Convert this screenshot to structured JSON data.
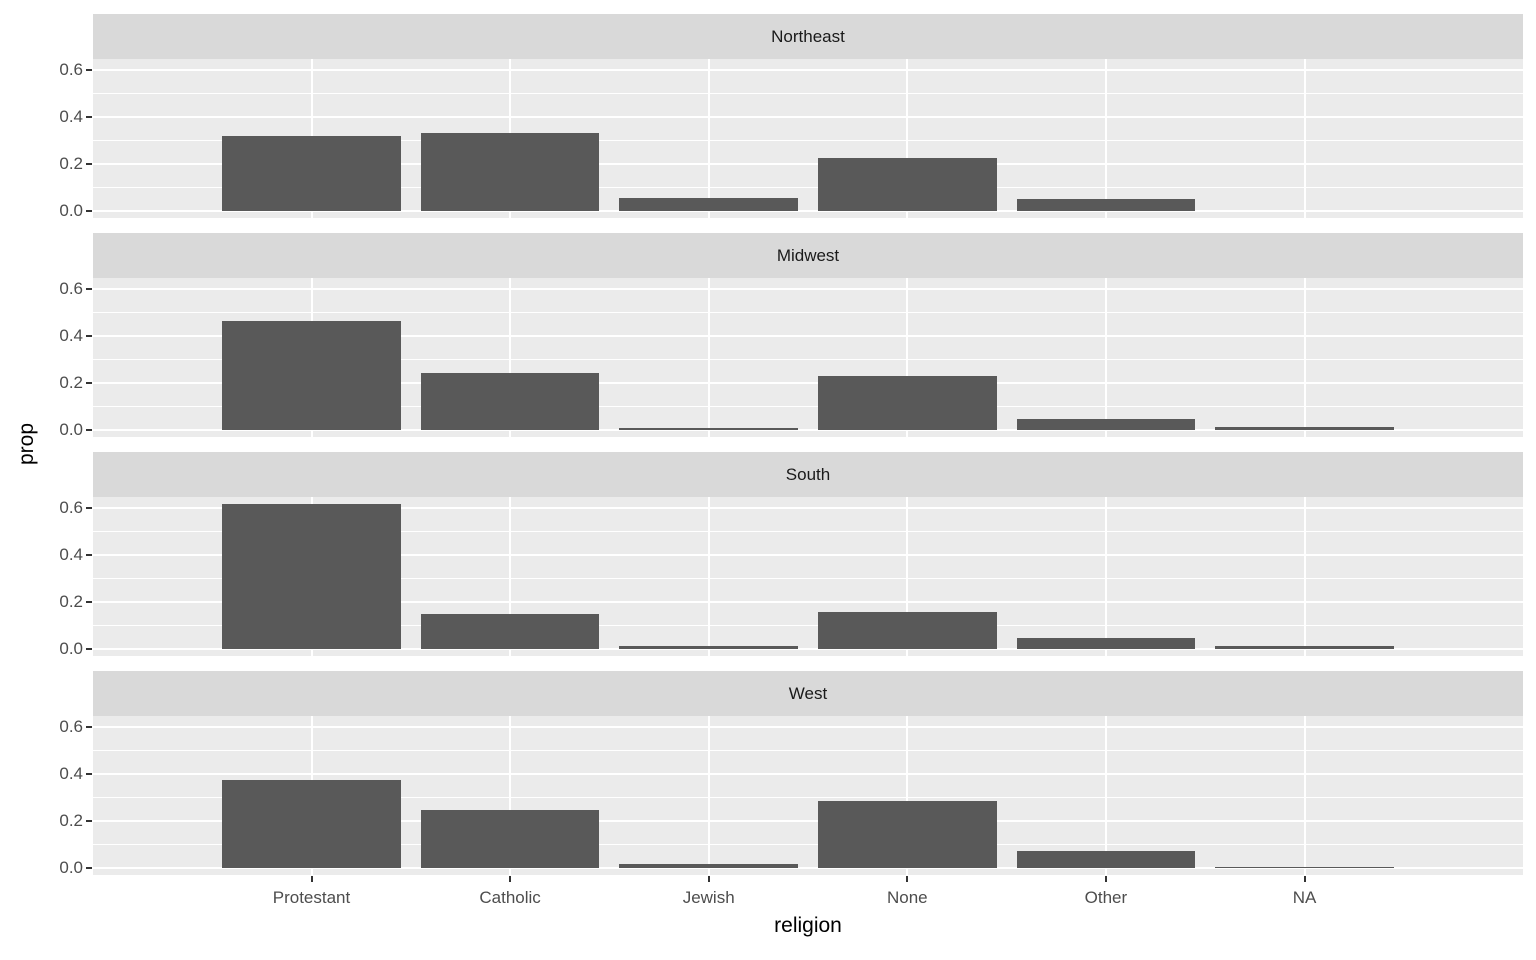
{
  "chart_data": {
    "type": "bar",
    "title": "",
    "xlabel": "religion",
    "ylabel": "prop",
    "categories": [
      "Protestant",
      "Catholic",
      "Jewish",
      "None",
      "Other",
      "NA"
    ],
    "y_ticks": [
      {
        "value": 0.0,
        "label": "0.0"
      },
      {
        "value": 0.2,
        "label": "0.2"
      },
      {
        "value": 0.4,
        "label": "0.4"
      },
      {
        "value": 0.6,
        "label": "0.6"
      }
    ],
    "y_minor_ticks": [
      0.1,
      0.3,
      0.5
    ],
    "ylim": [
      -0.031,
      0.646
    ],
    "grid": "major-and-minor-horizontal, major-vertical, white on gray panel",
    "legend": "none",
    "facets": [
      {
        "label": "Northeast",
        "values": [
          0.32,
          0.33,
          0.055,
          0.225,
          0.05,
          0.0
        ]
      },
      {
        "label": "Midwest",
        "values": [
          0.465,
          0.243,
          0.006,
          0.23,
          0.047,
          0.01
        ]
      },
      {
        "label": "South",
        "values": [
          0.615,
          0.15,
          0.012,
          0.158,
          0.044,
          0.011
        ]
      },
      {
        "label": "West",
        "values": [
          0.375,
          0.244,
          0.015,
          0.285,
          0.072,
          0.004
        ]
      }
    ],
    "colors": {
      "bar": "#595959",
      "panel_background": "#EBEBEB",
      "strip_background": "#D9D9D9",
      "gridline": "#FFFFFF",
      "axis_text": "#4D4D4D",
      "strip_text": "#1A1A1A",
      "axis_title_text": "#000000",
      "tick_mark": "#333333",
      "page_background": "#FFFFFF"
    }
  }
}
